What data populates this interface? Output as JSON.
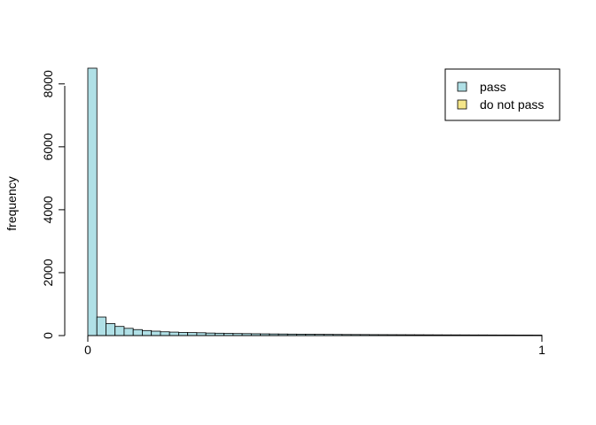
{
  "chart_data": {
    "type": "bar",
    "title": "",
    "xlabel": "",
    "ylabel": "frequency",
    "xlim": [
      0,
      1
    ],
    "ylim": [
      0,
      8500
    ],
    "x_ticks": [
      "0",
      "1"
    ],
    "y_ticks": [
      "0",
      "2000",
      "4000",
      "6000",
      "8000"
    ],
    "bin_width": 0.02,
    "grid": false,
    "legend_position": "top-right",
    "series": [
      {
        "name": "pass",
        "color": "#b0e0e6",
        "values": [
          8500,
          590,
          380,
          290,
          230,
          190,
          160,
          140,
          120,
          110,
          100,
          95,
          90,
          80,
          75,
          70,
          65,
          62,
          58,
          55,
          52,
          50,
          47,
          45,
          43,
          40,
          38,
          36,
          34,
          33,
          32,
          30,
          29,
          28,
          27,
          26,
          25,
          24,
          23,
          22,
          22,
          21,
          20,
          20,
          19,
          18,
          18,
          17,
          17,
          16
        ]
      },
      {
        "name": "do not pass",
        "color": "#f5e68a",
        "values": [
          0,
          0,
          0,
          0,
          0,
          0,
          0,
          0,
          0,
          0,
          0,
          0,
          0,
          0,
          0,
          0,
          0,
          0,
          0,
          0,
          0,
          0,
          0,
          0,
          0,
          0,
          0,
          0,
          0,
          0,
          0,
          0,
          0,
          0,
          0,
          0,
          0,
          0,
          0,
          0,
          0,
          0,
          0,
          0,
          0,
          0,
          0,
          0,
          0,
          0
        ]
      }
    ]
  }
}
